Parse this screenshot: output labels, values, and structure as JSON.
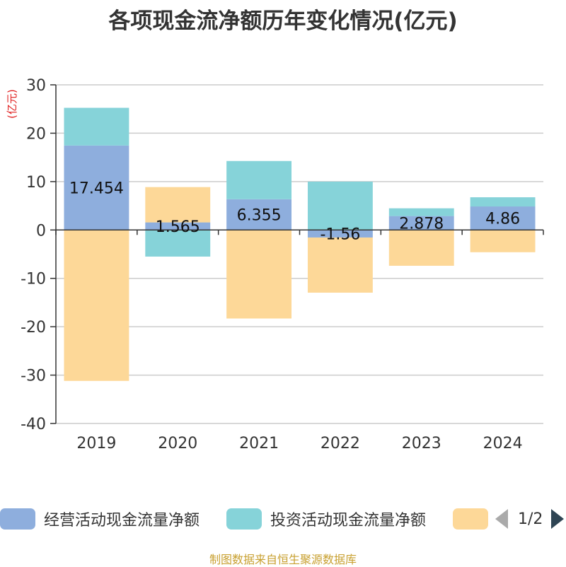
{
  "title": "各项现金流净额历年变化情况(亿元)",
  "chart_data": {
    "type": "bar",
    "stacked": true,
    "ylabel": "(亿元)",
    "ylim": [
      -40,
      30
    ],
    "yticks": [
      30,
      20,
      10,
      0,
      -10,
      -20,
      -30,
      -40
    ],
    "categories": [
      "2019",
      "2020",
      "2021",
      "2022",
      "2023",
      "2024"
    ],
    "series": [
      {
        "name": "经营活动现金流量净额",
        "color": "#8eaedd",
        "values": [
          17.454,
          1.565,
          6.355,
          -1.56,
          2.878,
          4.86
        ],
        "labels": [
          "17.454",
          "1.565",
          "6.355",
          "-1.56",
          "2.878",
          "4.86"
        ]
      },
      {
        "name": "投资活动现金流量净额",
        "color": "#86d3d9",
        "values": [
          7.8,
          -5.5,
          7.9,
          10.0,
          1.6,
          1.9
        ]
      },
      {
        "name": "",
        "color": "#fdd898",
        "values": [
          -31.2,
          7.3,
          -18.3,
          -11.4,
          -7.4,
          -4.6
        ]
      }
    ]
  },
  "legend": {
    "page_text": "1/2"
  },
  "footer": "制图数据来自恒生聚源数据库"
}
